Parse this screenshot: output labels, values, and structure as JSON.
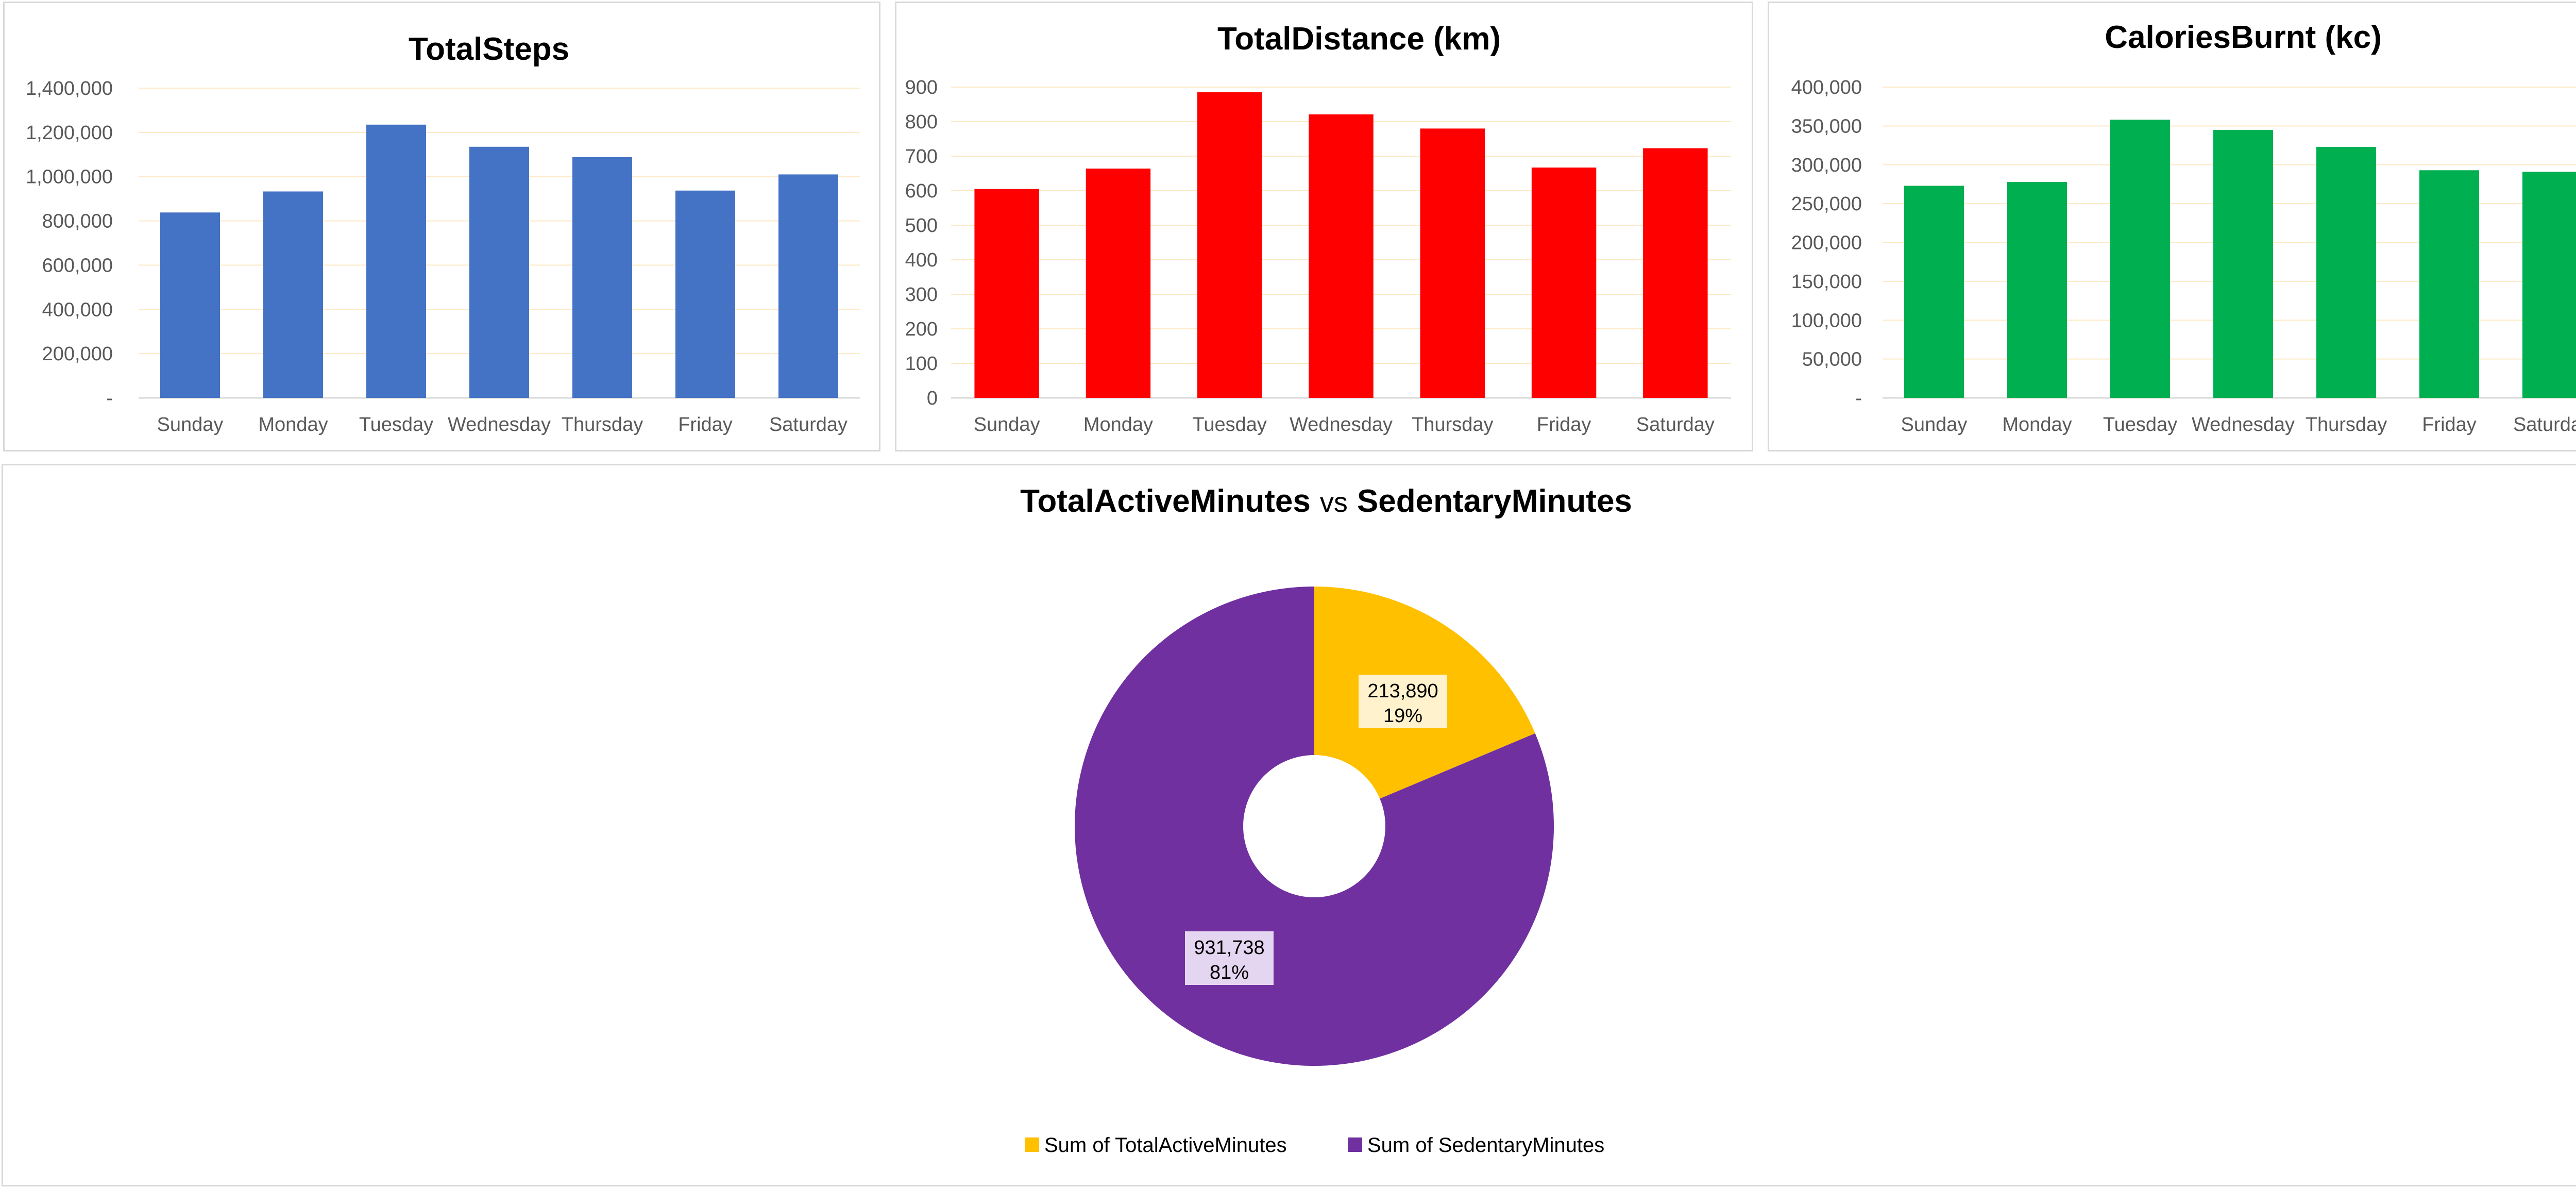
{
  "chart_data": [
    {
      "type": "bar",
      "title": "TotalSteps",
      "categories": [
        "Sunday",
        "Monday",
        "Tuesday",
        "Wednesday",
        "Thursday",
        "Friday",
        "Saturday"
      ],
      "values": [
        838000,
        933000,
        1235000,
        1135000,
        1088000,
        937000,
        1010000
      ],
      "ylim": [
        0,
        1400000
      ],
      "yticks": [
        0,
        200000,
        400000,
        600000,
        800000,
        1000000,
        1200000,
        1400000
      ],
      "ytick_labels": [
        "-",
        "200,000",
        "400,000",
        "600,000",
        "800,000",
        "1,000,000",
        "1,200,000",
        "1,400,000"
      ],
      "color": "#4472c4",
      "grid": true,
      "legend": false
    },
    {
      "type": "bar",
      "title": "TotalDistance (km)",
      "categories": [
        "Sunday",
        "Monday",
        "Tuesday",
        "Wednesday",
        "Thursday",
        "Friday",
        "Saturday"
      ],
      "values": [
        605,
        664,
        885,
        821,
        780,
        667,
        723
      ],
      "ylim": [
        0,
        900
      ],
      "yticks": [
        0,
        100,
        200,
        300,
        400,
        500,
        600,
        700,
        800,
        900
      ],
      "ytick_labels": [
        "0",
        "100",
        "200",
        "300",
        "400",
        "500",
        "600",
        "700",
        "800",
        "900"
      ],
      "color": "#ff0000",
      "grid": true,
      "legend": false
    },
    {
      "type": "bar",
      "title": "CaloriesBurnt (kc)",
      "categories": [
        "Sunday",
        "Monday",
        "Tuesday",
        "Wednesday",
        "Thursday",
        "Friday",
        "Saturday"
      ],
      "values": [
        273000,
        278000,
        358000,
        345000,
        323000,
        293000,
        291000
      ],
      "ylim": [
        0,
        400000
      ],
      "yticks": [
        0,
        50000,
        100000,
        150000,
        200000,
        250000,
        300000,
        350000,
        400000
      ],
      "ytick_labels": [
        "-",
        "50,000",
        "100,000",
        "150,000",
        "200,000",
        "250,000",
        "300,000",
        "350,000",
        "400,000"
      ],
      "color": "#00b050",
      "grid": true,
      "legend": false
    },
    {
      "type": "pie",
      "title_parts": [
        "TotalActiveMinutes",
        "vs",
        "SedentaryMinutes"
      ],
      "slices": [
        {
          "name": "Sum of TotalActiveMinutes",
          "value": 213890,
          "value_label": "213,890",
          "percent_label": "19%",
          "color": "#ffc000"
        },
        {
          "name": "Sum of SedentaryMinutes",
          "value": 931738,
          "value_label": "931,738",
          "percent_label": "81%",
          "color": "#7030a0"
        }
      ],
      "donut": true,
      "legend": "bottom"
    }
  ]
}
